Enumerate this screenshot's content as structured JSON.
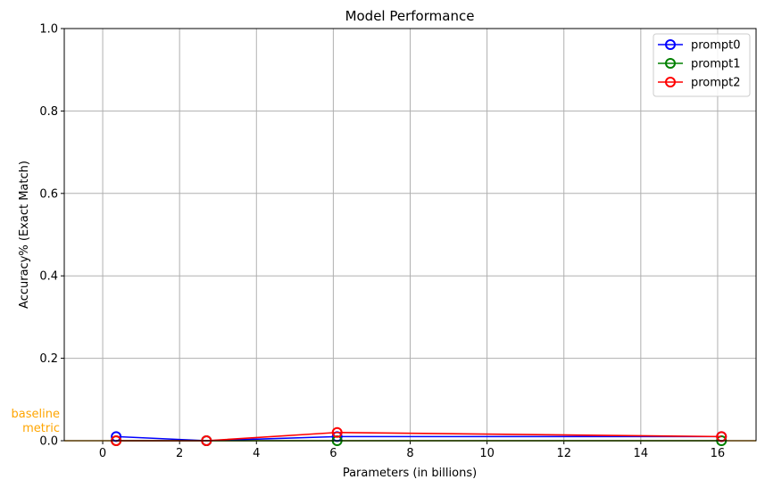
{
  "chart_data": {
    "type": "line",
    "title": "Model Performance",
    "xlabel": "Parameters (in billions)",
    "ylabel": "Accuracy% (Exact Match)",
    "xlim": [
      -1,
      17
    ],
    "ylim": [
      0,
      1.0
    ],
    "xticks": [
      0,
      2,
      4,
      6,
      8,
      10,
      12,
      14,
      16
    ],
    "xtick_labels": [
      "0",
      "2",
      "4",
      "6",
      "8",
      "10",
      "12",
      "14",
      "16"
    ],
    "yticks": [
      0,
      0.2,
      0.4,
      0.6,
      0.8,
      1.0
    ],
    "ytick_labels": [
      "0.0",
      "0.2",
      "0.4",
      "0.6",
      "0.8",
      "1.0"
    ],
    "grid": true,
    "legend_position": "top-right",
    "series": [
      {
        "name": "prompt0",
        "color": "#0000ff",
        "x": [
          0.35,
          2.7,
          6.1,
          16.1
        ],
        "y": [
          0.01,
          0.0,
          0.01,
          0.01
        ]
      },
      {
        "name": "prompt1",
        "color": "#008000",
        "x": [
          0.35,
          2.7,
          6.1,
          16.1
        ],
        "y": [
          0.0,
          0.0,
          0.0,
          0.0
        ]
      },
      {
        "name": "prompt2",
        "color": "#ff0000",
        "x": [
          0.35,
          2.7,
          6.1,
          16.1
        ],
        "y": [
          0.0,
          0.0,
          0.02,
          0.01
        ]
      }
    ],
    "baseline": {
      "label": "baseline\nmetric",
      "value": 0.0,
      "color": "#ffa500"
    }
  }
}
